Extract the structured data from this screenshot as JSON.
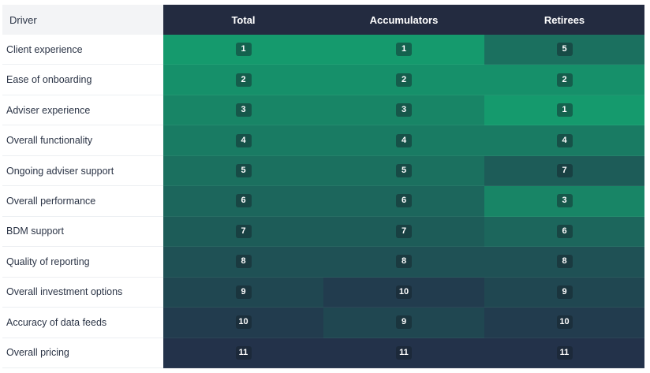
{
  "chart_data": {
    "type": "heatmap",
    "row_header": "Driver",
    "columns": [
      "Total",
      "Accumulators",
      "Retirees"
    ],
    "rows": [
      {
        "driver": "Client experience",
        "values": [
          1,
          1,
          5
        ]
      },
      {
        "driver": "Ease of onboarding",
        "values": [
          2,
          2,
          2
        ]
      },
      {
        "driver": "Adviser experience",
        "values": [
          3,
          3,
          1
        ]
      },
      {
        "driver": "Overall functionality",
        "values": [
          4,
          4,
          4
        ]
      },
      {
        "driver": "Ongoing adviser support",
        "values": [
          5,
          5,
          7
        ]
      },
      {
        "driver": "Overall performance",
        "values": [
          6,
          6,
          3
        ]
      },
      {
        "driver": "BDM support",
        "values": [
          7,
          7,
          6
        ]
      },
      {
        "driver": "Quality of reporting",
        "values": [
          8,
          8,
          8
        ]
      },
      {
        "driver": "Overall investment options",
        "values": [
          9,
          10,
          9
        ]
      },
      {
        "driver": "Accuracy of data feeds",
        "values": [
          10,
          9,
          10
        ]
      },
      {
        "driver": "Overall pricing",
        "values": [
          11,
          11,
          11
        ]
      }
    ],
    "value_range": [
      1,
      11
    ],
    "colors": {
      "rank_1": "#159a6d",
      "rank_11": "#23324a",
      "header_bg": "#232b40",
      "header_text": "#ffffff",
      "row_header_bg": "#f3f4f6"
    }
  }
}
